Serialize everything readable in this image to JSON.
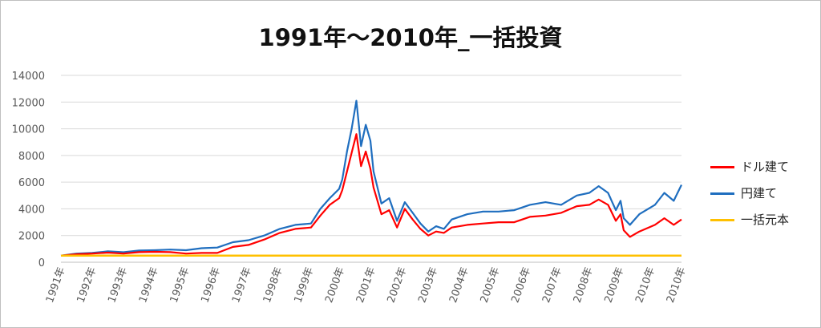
{
  "chart_data": {
    "type": "line",
    "title": "1991年～2010年_一括投資",
    "xlabel": "",
    "ylabel": "",
    "ylim": [
      0,
      14000
    ],
    "yticks": [
      "0",
      "2000",
      "4000",
      "6000",
      "8000",
      "10000",
      "12000",
      "14000"
    ],
    "xticks": [
      "1991年",
      "1992年",
      "1993年",
      "1994年",
      "1995年",
      "1996年",
      "1997年",
      "1998年",
      "1999年",
      "2000年",
      "2001年",
      "2002年",
      "2003年",
      "2004年",
      "2005年",
      "2006年",
      "2007年",
      "2008年",
      "2009年",
      "2010年",
      "2010年"
    ],
    "grid": true,
    "legend_position": "right",
    "series": [
      {
        "name": "ドル建て",
        "color": "#ff0000",
        "x": [
          1991.0,
          1991.5,
          1992.0,
          1992.5,
          1993.0,
          1993.5,
          1994.0,
          1994.5,
          1995.0,
          1995.5,
          1996.0,
          1996.5,
          1997.0,
          1997.5,
          1998.0,
          1998.5,
          1999.0,
          1999.3,
          1999.6,
          1999.9,
          2000.0,
          2000.15,
          2000.3,
          2000.45,
          2000.6,
          2000.75,
          2000.9,
          2001.0,
          2001.25,
          2001.5,
          2001.75,
          2002.0,
          2002.25,
          2002.5,
          2002.75,
          2003.0,
          2003.25,
          2003.5,
          2004.0,
          2004.5,
          2005.0,
          2005.5,
          2006.0,
          2006.5,
          2007.0,
          2007.5,
          2007.9,
          2008.2,
          2008.5,
          2008.75,
          2008.9,
          2009.0,
          2009.2,
          2009.5,
          2010.0,
          2010.3,
          2010.6,
          2010.85
        ],
        "values": [
          500,
          600,
          650,
          720,
          650,
          760,
          780,
          760,
          650,
          700,
          700,
          1150,
          1300,
          1700,
          2200,
          2500,
          2600,
          3500,
          4300,
          4800,
          5400,
          6800,
          8200,
          9600,
          7200,
          8300,
          7000,
          5600,
          3600,
          3900,
          2600,
          4000,
          3200,
          2500,
          2000,
          2300,
          2200,
          2600,
          2800,
          2900,
          3000,
          3000,
          3400,
          3500,
          3700,
          4200,
          4300,
          4700,
          4300,
          3100,
          3600,
          2400,
          1900,
          2300,
          2800,
          3300,
          2800,
          3200
        ]
      },
      {
        "name": "円建て",
        "color": "#1f6ebf",
        "x": [
          1991.0,
          1991.5,
          1992.0,
          1992.5,
          1993.0,
          1993.5,
          1994.0,
          1994.5,
          1995.0,
          1995.5,
          1996.0,
          1996.5,
          1997.0,
          1997.5,
          1998.0,
          1998.5,
          1999.0,
          1999.3,
          1999.6,
          1999.9,
          2000.0,
          2000.15,
          2000.3,
          2000.45,
          2000.6,
          2000.75,
          2000.9,
          2001.0,
          2001.25,
          2001.5,
          2001.75,
          2002.0,
          2002.25,
          2002.5,
          2002.75,
          2003.0,
          2003.25,
          2003.5,
          2004.0,
          2004.5,
          2005.0,
          2005.5,
          2006.0,
          2006.5,
          2007.0,
          2007.5,
          2007.9,
          2008.2,
          2008.5,
          2008.75,
          2008.9,
          2009.0,
          2009.2,
          2009.5,
          2010.0,
          2010.3,
          2010.6,
          2010.85
        ],
        "values": [
          500,
          650,
          700,
          820,
          750,
          880,
          900,
          950,
          900,
          1050,
          1100,
          1500,
          1650,
          2000,
          2500,
          2800,
          2900,
          4000,
          4800,
          5500,
          6200,
          8300,
          10000,
          12100,
          8700,
          10300,
          9100,
          6800,
          4400,
          4800,
          3100,
          4500,
          3700,
          2900,
          2300,
          2700,
          2500,
          3200,
          3600,
          3800,
          3800,
          3900,
          4300,
          4500,
          4300,
          5000,
          5200,
          5700,
          5200,
          3900,
          4600,
          3300,
          2800,
          3600,
          4300,
          5200,
          4600,
          5800
        ]
      },
      {
        "name": "一括元本",
        "color": "#ffc000",
        "x": [
          1991.0,
          2010.85
        ],
        "values": [
          500,
          500
        ]
      }
    ]
  }
}
